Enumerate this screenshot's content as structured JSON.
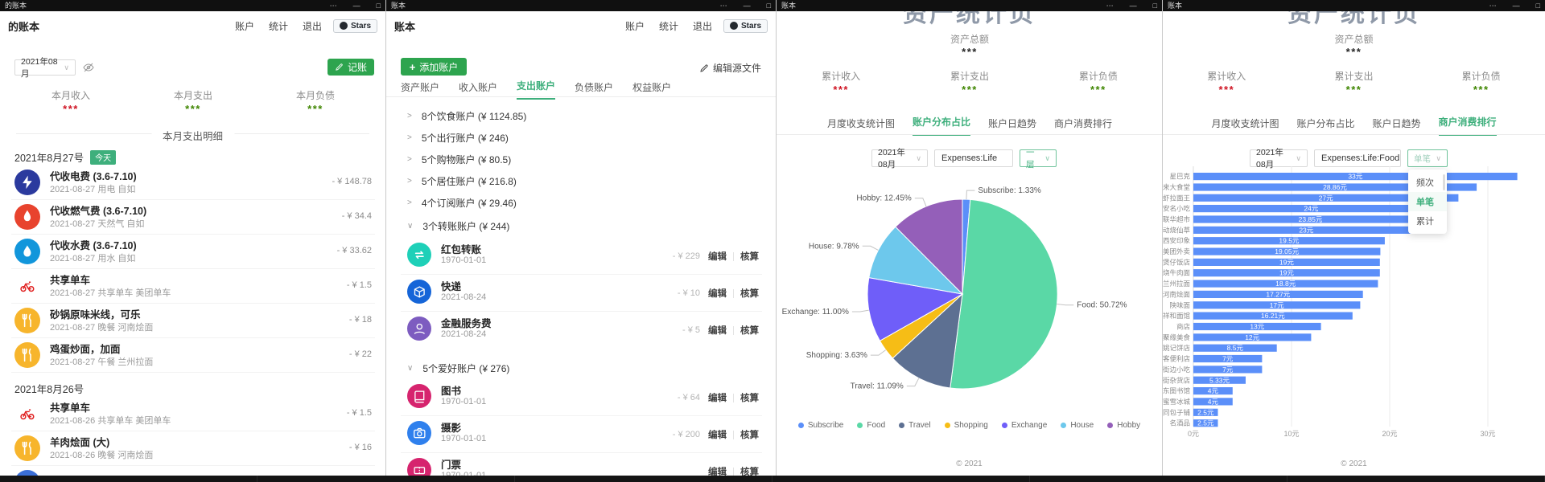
{
  "colors": {
    "button_green": "#2da44e",
    "theme_green": "#3eaf7c",
    "income_red": "#cf1322",
    "expense_green": "#3f8600",
    "bar_blue": "#5B8FF9",
    "titlebar_black": "#101010"
  },
  "w1": {
    "titlebar_title": "的账本",
    "logo": "的账本",
    "nav": [
      "账户",
      "统计",
      "退出"
    ],
    "stars_label": "Stars",
    "month_select": "2021年08月",
    "record_button": "记账",
    "stats": [
      {
        "label": "本月收入",
        "value": "***",
        "tone": "red"
      },
      {
        "label": "本月支出",
        "value": "***",
        "tone": "green"
      },
      {
        "label": "本月负债",
        "value": "***",
        "tone": "green"
      }
    ],
    "divider_title": "本月支出明细",
    "groups": [
      {
        "date": "2021年8月27号",
        "badge": "今天",
        "items": [
          {
            "icon": "bolt-icon",
            "bg": "#2b3a9e",
            "title": "代收电费 (3.6-7.10)",
            "meta": "2021-08-27 用电 自如",
            "amount": "- ¥ 148.78"
          },
          {
            "icon": "flame-icon",
            "bg": "#e8432e",
            "title": "代收燃气费 (3.6-7.10)",
            "meta": "2021-08-27 天然气 自如",
            "amount": "- ¥ 34.4"
          },
          {
            "icon": "drop-icon",
            "bg": "#1296db",
            "title": "代收水费 (3.6-7.10)",
            "meta": "2021-08-27 用水 自如",
            "amount": "- ¥ 33.62"
          },
          {
            "icon": "bike-icon",
            "bg": "none",
            "title": "共享单车",
            "meta": "2021-08-27 共享单车 美团单车",
            "amount": "- ¥ 1.5"
          },
          {
            "icon": "utensils-icon",
            "bg": "#f7b52c",
            "title": "砂锅原味米线，可乐",
            "meta": "2021-08-27 晚餐 河南烩面",
            "amount": "- ¥ 18"
          },
          {
            "icon": "utensils-icon",
            "bg": "#f7b52c",
            "title": "鸡蛋炒面，加面",
            "meta": "2021-08-27 午餐 兰州拉面",
            "amount": "- ¥ 22"
          }
        ]
      },
      {
        "date": "2021年8月26号",
        "badge": "",
        "items": [
          {
            "icon": "bike-icon",
            "bg": "none",
            "title": "共享单车",
            "meta": "2021-08-26 共享单车 美团单车",
            "amount": "- ¥ 1.5"
          },
          {
            "icon": "utensils-icon",
            "bg": "#f7b52c",
            "title": "羊肉烩面 (大)",
            "meta": "2021-08-26 晚餐 河南烩面",
            "amount": "- ¥ 16"
          },
          {
            "icon": "circle-icon",
            "bg": "#3b6fd8",
            "title": "",
            "meta": "",
            "amount": "",
            "partial": true
          }
        ]
      }
    ]
  },
  "w2": {
    "titlebar_title": "账本",
    "logo": "账本",
    "nav": [
      "账户",
      "统计",
      "退出"
    ],
    "stars_label": "Stars",
    "add_button": "添加账户",
    "edit_source": "编辑源文件",
    "tabs": [
      "资产账户",
      "收入账户",
      "支出账户",
      "负债账户",
      "权益账户"
    ],
    "active_tab": 2,
    "row_actions": [
      "编辑",
      "核算"
    ],
    "groups": [
      {
        "label": "8个饮食账户 (¥ 1124.85)",
        "expanded": false
      },
      {
        "label": "5个出行账户 (¥ 246)",
        "expanded": false
      },
      {
        "label": "5个购物账户 (¥ 80.5)",
        "expanded": false
      },
      {
        "label": "5个居住账户 (¥ 216.8)",
        "expanded": false
      },
      {
        "label": "4个订阅账户 (¥ 29.46)",
        "expanded": false
      },
      {
        "label": "3个转账账户 (¥ 244)",
        "expanded": true,
        "accounts": [
          {
            "icon": "transfer-icon",
            "bg": "#1ed0b8",
            "title": "红包转账",
            "date": "1970-01-01",
            "amount": "- ¥ 229"
          },
          {
            "icon": "package-icon",
            "bg": "#1565d8",
            "title": "快递",
            "date": "2021-08-24",
            "amount": "- ¥ 10"
          },
          {
            "icon": "finance-icon",
            "bg": "#7d5cc0",
            "title": "金融服务费",
            "date": "2021-08-24",
            "amount": "- ¥ 5"
          }
        ]
      },
      {
        "label": "5个爱好账户 (¥ 276)",
        "expanded": true,
        "accounts": [
          {
            "icon": "book-icon",
            "bg": "#d6246e",
            "title": "图书",
            "date": "1970-01-01",
            "amount": "- ¥ 64"
          },
          {
            "icon": "camera-icon",
            "bg": "#2f80ed",
            "title": "摄影",
            "date": "1970-01-01",
            "amount": "- ¥ 200"
          },
          {
            "icon": "ticket-icon",
            "bg": "#d6246e",
            "title": "门票",
            "date": "1970-01-01",
            "amount": ""
          }
        ]
      }
    ]
  },
  "w3": {
    "titlebar_title": "账本",
    "hero_title": "资产统计页",
    "total_label": "资产总额",
    "total_value": "***",
    "stats": [
      {
        "label": "累计收入",
        "value": "***",
        "tone": "red"
      },
      {
        "label": "累计支出",
        "value": "***",
        "tone": "green"
      },
      {
        "label": "累计负债",
        "value": "***",
        "tone": "green"
      }
    ],
    "tabs": [
      "月度收支统计图",
      "账户分布占比",
      "账户日趋势",
      "商户消费排行"
    ],
    "active_tab": 1,
    "controls": {
      "month": "2021年08月",
      "account": "Expenses:Life",
      "depth": "一层"
    },
    "footer": "© 2021"
  },
  "w4": {
    "titlebar_title": "账本",
    "hero_title": "资产统计页",
    "total_label": "资产总额",
    "total_value": "***",
    "stats": [
      {
        "label": "累计收入",
        "value": "***",
        "tone": "red"
      },
      {
        "label": "累计支出",
        "value": "***",
        "tone": "green"
      },
      {
        "label": "累计负债",
        "value": "***",
        "tone": "green"
      }
    ],
    "tabs": [
      "月度收支统计图",
      "账户分布占比",
      "账户日趋势",
      "商户消费排行"
    ],
    "active_tab": 3,
    "controls": {
      "month": "2021年08月",
      "account": "Expenses:Life:Food",
      "mode": "单笔"
    },
    "dropdown": {
      "options": [
        "频次",
        "单笔",
        "累计"
      ],
      "selected": "单笔"
    },
    "footer": "© 2021"
  },
  "chart_data": [
    {
      "type": "pie",
      "title": "账户分布占比",
      "legend_position": "bottom",
      "slices": [
        {
          "name": "Subscribe",
          "value": 1.33,
          "label": "Subscribe: 1.33%",
          "color": "#5B8FF9"
        },
        {
          "name": "Food",
          "value": 50.72,
          "label": "Food: 50.72%",
          "color": "#5AD8A6"
        },
        {
          "name": "Travel",
          "value": 11.09,
          "label": "Travel: 11.09%",
          "color": "#5D7092"
        },
        {
          "name": "Shopping",
          "value": 3.63,
          "label": "Shopping: 3.63%",
          "color": "#F6BD16"
        },
        {
          "name": "Exchange",
          "value": 11.0,
          "label": "Exchange: 11.00%",
          "color": "#6F5EF9"
        },
        {
          "name": "House",
          "value": 9.78,
          "label": "House: 9.78%",
          "color": "#6DC8EC"
        },
        {
          "name": "Hobby",
          "value": 12.45,
          "label": "Hobby: 12.45%",
          "color": "#945FB9"
        }
      ]
    },
    {
      "type": "bar",
      "orientation": "horizontal",
      "title": "商户消费排行",
      "bar_color": "#5B8FF9",
      "xlim": [
        0,
        30
      ],
      "xticks": [
        "0元",
        "10元",
        "20元",
        "30元"
      ],
      "categories": [
        "星巴克",
        "好味来大食堂",
        "和虾拉面王",
        "西安名小吃",
        "联华超市",
        "悸动烧仙草",
        "西安印象",
        "美团外卖",
        "港式煲仔饭店",
        "红烧牛肉面",
        "兰州拉面",
        "河南烩面",
        "陕味面",
        "祥和面馆",
        "商店",
        "聚缘美食",
        "姚记饼店",
        "快客便利店",
        "街边小吃",
        "东街杂货店",
        "浦东图书馆",
        "蜜雪冰城",
        "胡同包子铺",
        "名酒品"
      ],
      "values": [
        33,
        28.86,
        27,
        24,
        23.85,
        23,
        19.5,
        19.05,
        19,
        19,
        18.8,
        17.27,
        17,
        16.21,
        13,
        12,
        8.5,
        7,
        7,
        5.33,
        4,
        4,
        2.5,
        2.5
      ],
      "value_labels": [
        "33元",
        "28.86元",
        "27元",
        "24元",
        "23.85元",
        "23元",
        "19.5元",
        "19.05元",
        "19元",
        "19元",
        "18.8元",
        "17.27元",
        "17元",
        "16.21元",
        "13元",
        "12元",
        "8.5元",
        "7元",
        "7元",
        "5.33元",
        "4元",
        "4元",
        "2.5元",
        "2.5元"
      ]
    }
  ]
}
